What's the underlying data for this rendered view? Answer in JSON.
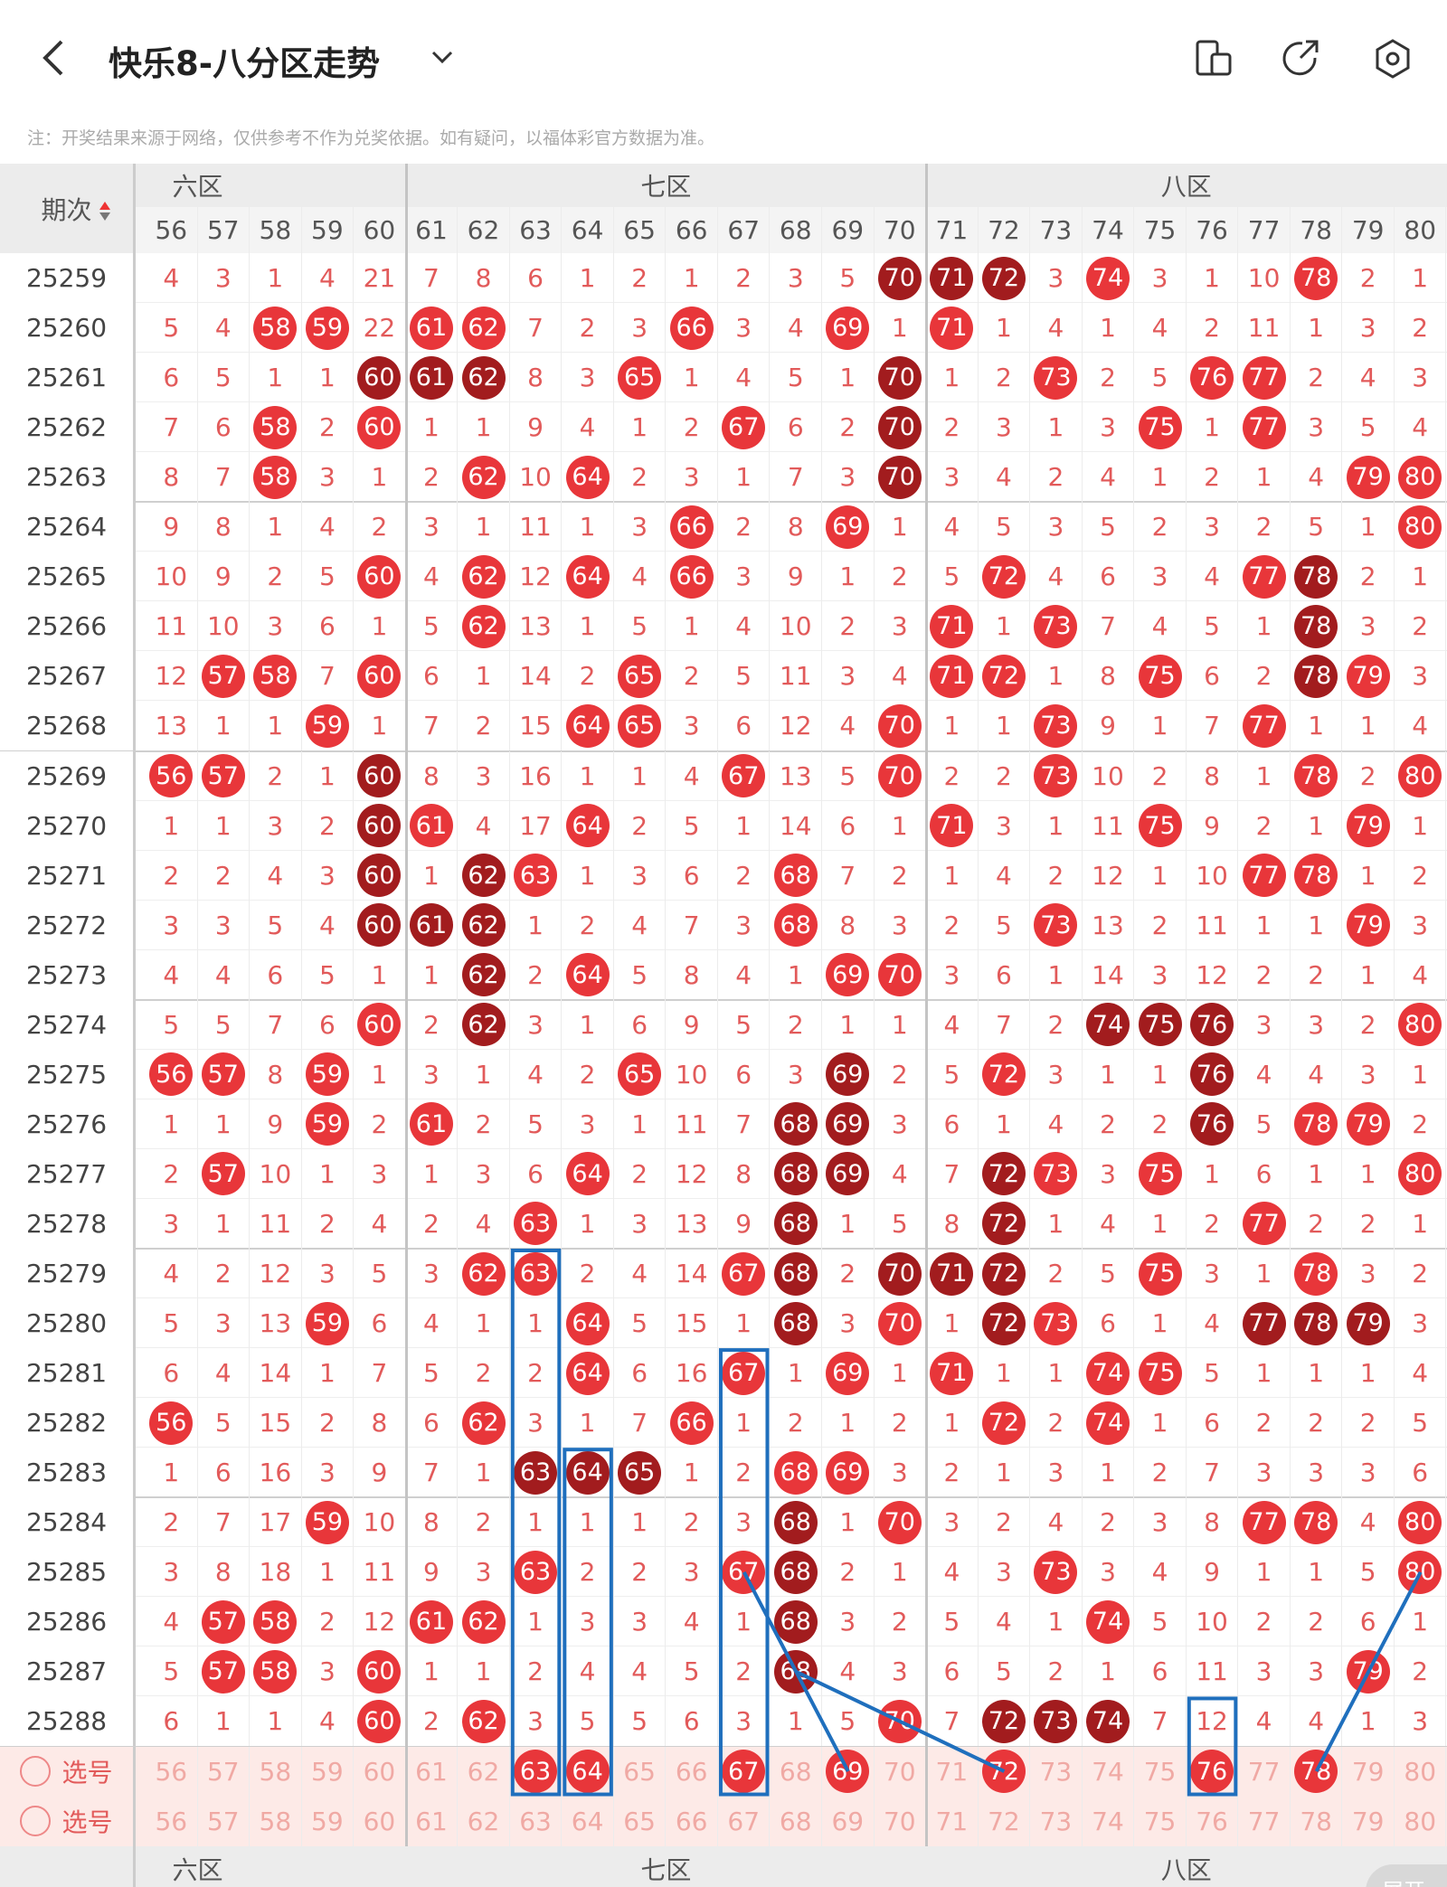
{
  "header": {
    "title": "快乐8-八分区走势",
    "note": "注：开奖结果来源于网络，仅供参考不作为兑奖依据。如有疑问，以福体彩官方数据为准。"
  },
  "table": {
    "issue_header": "期次",
    "zones": [
      "六区",
      "七区",
      "八区"
    ],
    "columns": [
      56,
      57,
      58,
      59,
      60,
      61,
      62,
      63,
      64,
      65,
      66,
      67,
      68,
      69,
      70,
      71,
      72,
      73,
      74,
      75,
      76,
      77,
      78,
      79,
      80
    ],
    "rows": [
      {
        "issue": "25259",
        "cells": [
          4,
          3,
          1,
          4,
          21,
          7,
          8,
          6,
          1,
          2,
          1,
          2,
          3,
          5,
          70,
          71,
          72,
          3,
          74,
          3,
          1,
          10,
          78,
          2,
          1
        ],
        "dark": [
          70,
          71,
          72
        ]
      },
      {
        "issue": "25260",
        "cells": [
          5,
          4,
          58,
          59,
          22,
          61,
          62,
          7,
          2,
          3,
          66,
          3,
          4,
          69,
          1,
          71,
          1,
          4,
          1,
          4,
          2,
          11,
          1,
          3,
          2
        ],
        "dark": []
      },
      {
        "issue": "25261",
        "cells": [
          6,
          5,
          1,
          1,
          60,
          61,
          62,
          8,
          3,
          65,
          1,
          4,
          5,
          1,
          70,
          1,
          2,
          73,
          2,
          5,
          76,
          77,
          2,
          4,
          3
        ],
        "dark": [
          60,
          61,
          62,
          70
        ]
      },
      {
        "issue": "25262",
        "cells": [
          7,
          6,
          58,
          2,
          60,
          1,
          1,
          9,
          4,
          1,
          2,
          67,
          6,
          2,
          70,
          2,
          3,
          1,
          3,
          75,
          1,
          77,
          3,
          5,
          4
        ],
        "dark": [
          70
        ]
      },
      {
        "issue": "25263",
        "cells": [
          8,
          7,
          58,
          3,
          1,
          2,
          62,
          10,
          64,
          2,
          3,
          1,
          7,
          3,
          70,
          3,
          4,
          2,
          4,
          1,
          2,
          1,
          4,
          79,
          80
        ],
        "dark": [
          70
        ]
      },
      {
        "issue": "25264",
        "cells": [
          9,
          8,
          1,
          4,
          2,
          3,
          1,
          11,
          1,
          3,
          66,
          2,
          8,
          69,
          1,
          4,
          5,
          3,
          5,
          2,
          3,
          2,
          5,
          1,
          80
        ],
        "dark": []
      },
      {
        "issue": "25265",
        "cells": [
          10,
          9,
          2,
          5,
          60,
          4,
          62,
          12,
          64,
          4,
          66,
          3,
          9,
          1,
          2,
          5,
          72,
          4,
          6,
          3,
          4,
          77,
          78,
          2,
          1
        ],
        "dark": [
          78
        ]
      },
      {
        "issue": "25266",
        "cells": [
          11,
          10,
          3,
          6,
          1,
          5,
          62,
          13,
          1,
          5,
          1,
          4,
          10,
          2,
          3,
          71,
          1,
          73,
          7,
          4,
          5,
          1,
          78,
          3,
          2
        ],
        "dark": [
          78
        ]
      },
      {
        "issue": "25267",
        "cells": [
          12,
          57,
          58,
          7,
          60,
          6,
          1,
          14,
          2,
          65,
          2,
          5,
          11,
          3,
          4,
          71,
          72,
          1,
          8,
          75,
          6,
          2,
          78,
          79,
          3
        ],
        "dark": [
          78
        ]
      },
      {
        "issue": "25268",
        "cells": [
          13,
          1,
          1,
          59,
          1,
          7,
          2,
          15,
          64,
          65,
          3,
          6,
          12,
          4,
          70,
          1,
          1,
          73,
          9,
          1,
          7,
          77,
          1,
          1,
          4
        ],
        "dark": []
      },
      {
        "issue": "25269",
        "cells": [
          56,
          57,
          2,
          1,
          60,
          8,
          3,
          16,
          1,
          1,
          4,
          67,
          13,
          5,
          70,
          2,
          2,
          73,
          10,
          2,
          8,
          1,
          78,
          2,
          80
        ],
        "dark": [
          60
        ]
      },
      {
        "issue": "25270",
        "cells": [
          1,
          1,
          3,
          2,
          60,
          61,
          4,
          17,
          64,
          2,
          5,
          1,
          14,
          6,
          1,
          71,
          3,
          1,
          11,
          75,
          9,
          2,
          1,
          79,
          1
        ],
        "dark": [
          60
        ]
      },
      {
        "issue": "25271",
        "cells": [
          2,
          2,
          4,
          3,
          60,
          1,
          62,
          63,
          1,
          3,
          6,
          2,
          68,
          7,
          2,
          1,
          4,
          2,
          12,
          1,
          10,
          77,
          78,
          1,
          2
        ],
        "dark": [
          60,
          62
        ]
      },
      {
        "issue": "25272",
        "cells": [
          3,
          3,
          5,
          4,
          60,
          61,
          62,
          1,
          2,
          4,
          7,
          3,
          68,
          8,
          3,
          2,
          5,
          73,
          13,
          2,
          11,
          1,
          1,
          79,
          3
        ],
        "dark": [
          60,
          61,
          62
        ]
      },
      {
        "issue": "25273",
        "cells": [
          4,
          4,
          6,
          5,
          1,
          1,
          62,
          2,
          64,
          5,
          8,
          4,
          1,
          69,
          70,
          3,
          6,
          1,
          14,
          3,
          12,
          2,
          2,
          1,
          4
        ],
        "dark": [
          62
        ]
      },
      {
        "issue": "25274",
        "cells": [
          5,
          5,
          7,
          6,
          60,
          2,
          62,
          3,
          1,
          6,
          9,
          5,
          2,
          1,
          1,
          4,
          7,
          2,
          74,
          75,
          76,
          3,
          3,
          2,
          80
        ],
        "dark": [
          62,
          74,
          75,
          76
        ]
      },
      {
        "issue": "25275",
        "cells": [
          56,
          57,
          8,
          59,
          1,
          3,
          1,
          4,
          2,
          65,
          10,
          6,
          3,
          69,
          2,
          5,
          72,
          3,
          1,
          1,
          76,
          4,
          4,
          3,
          1
        ],
        "dark": [
          69,
          76
        ]
      },
      {
        "issue": "25276",
        "cells": [
          1,
          1,
          9,
          59,
          2,
          61,
          2,
          5,
          3,
          1,
          11,
          7,
          68,
          69,
          3,
          6,
          1,
          4,
          2,
          2,
          76,
          5,
          78,
          79,
          2
        ],
        "dark": [
          68,
          69,
          76
        ]
      },
      {
        "issue": "25277",
        "cells": [
          2,
          57,
          10,
          1,
          3,
          1,
          3,
          6,
          64,
          2,
          12,
          8,
          68,
          69,
          4,
          7,
          72,
          73,
          3,
          75,
          1,
          6,
          1,
          1,
          80
        ],
        "dark": [
          68,
          69,
          72
        ]
      },
      {
        "issue": "25278",
        "cells": [
          3,
          1,
          11,
          2,
          4,
          2,
          4,
          63,
          1,
          3,
          13,
          9,
          68,
          1,
          5,
          8,
          72,
          1,
          4,
          1,
          2,
          77,
          2,
          2,
          1
        ],
        "dark": [
          68,
          72
        ]
      },
      {
        "issue": "25279",
        "cells": [
          4,
          2,
          12,
          3,
          5,
          3,
          62,
          63,
          2,
          4,
          14,
          67,
          68,
          2,
          70,
          71,
          72,
          2,
          5,
          75,
          3,
          1,
          78,
          3,
          2
        ],
        "dark": [
          68,
          70,
          71,
          72
        ]
      },
      {
        "issue": "25280",
        "cells": [
          5,
          3,
          13,
          59,
          6,
          4,
          1,
          1,
          64,
          5,
          15,
          1,
          68,
          3,
          70,
          1,
          72,
          73,
          6,
          1,
          4,
          77,
          78,
          79,
          3
        ],
        "dark": [
          68,
          72,
          77,
          78,
          79
        ]
      },
      {
        "issue": "25281",
        "cells": [
          6,
          4,
          14,
          1,
          7,
          5,
          2,
          2,
          64,
          6,
          16,
          67,
          1,
          69,
          1,
          71,
          1,
          1,
          74,
          75,
          5,
          1,
          1,
          1,
          4
        ],
        "dark": []
      },
      {
        "issue": "25282",
        "cells": [
          56,
          5,
          15,
          2,
          8,
          6,
          62,
          3,
          1,
          7,
          66,
          1,
          2,
          1,
          2,
          1,
          72,
          2,
          74,
          1,
          6,
          2,
          2,
          2,
          5
        ],
        "dark": []
      },
      {
        "issue": "25283",
        "cells": [
          1,
          6,
          16,
          3,
          9,
          7,
          1,
          63,
          64,
          65,
          1,
          2,
          68,
          69,
          3,
          2,
          1,
          3,
          1,
          2,
          7,
          3,
          3,
          3,
          6
        ],
        "dark": [
          63,
          64,
          65
        ]
      },
      {
        "issue": "25284",
        "cells": [
          2,
          7,
          17,
          59,
          10,
          8,
          2,
          1,
          1,
          1,
          2,
          3,
          68,
          1,
          70,
          3,
          2,
          4,
          2,
          3,
          8,
          77,
          78,
          4,
          80
        ],
        "dark": [
          68
        ]
      },
      {
        "issue": "25285",
        "cells": [
          3,
          8,
          18,
          1,
          11,
          9,
          3,
          63,
          2,
          2,
          3,
          67,
          68,
          2,
          1,
          4,
          3,
          73,
          3,
          4,
          9,
          1,
          1,
          5,
          80
        ],
        "dark": [
          68
        ]
      },
      {
        "issue": "25286",
        "cells": [
          4,
          57,
          58,
          2,
          12,
          61,
          62,
          1,
          3,
          3,
          4,
          1,
          68,
          3,
          2,
          5,
          4,
          1,
          74,
          5,
          10,
          2,
          2,
          6,
          1
        ],
        "dark": [
          68
        ]
      },
      {
        "issue": "25287",
        "cells": [
          5,
          57,
          58,
          3,
          60,
          1,
          1,
          2,
          4,
          4,
          5,
          2,
          68,
          4,
          3,
          6,
          5,
          2,
          1,
          6,
          11,
          3,
          3,
          79,
          2
        ],
        "dark": [
          68
        ]
      },
      {
        "issue": "25288",
        "cells": [
          6,
          1,
          1,
          4,
          60,
          2,
          62,
          3,
          5,
          5,
          6,
          3,
          1,
          5,
          70,
          7,
          72,
          73,
          74,
          7,
          12,
          4,
          4,
          1,
          3
        ],
        "dark": [
          72,
          73,
          74
        ]
      }
    ],
    "pick_rows": [
      {
        "label": "选号",
        "selected": [
          63,
          64,
          67,
          69,
          72,
          76,
          78
        ]
      },
      {
        "label": "选号",
        "selected": []
      }
    ],
    "expand": "展开"
  }
}
